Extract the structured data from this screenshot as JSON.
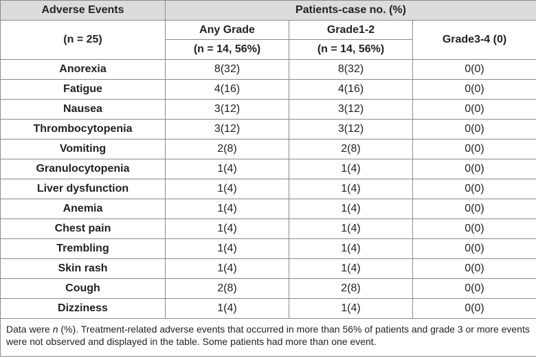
{
  "header": {
    "events": "Adverse Events",
    "group": "Patients-case no. (%)",
    "n": "(n = 25)",
    "any": "Any Grade",
    "any_n": "(n = 14, 56%)",
    "g12": "Grade1-2",
    "g12_n": "(n = 14, 56%)",
    "g34": "Grade3-4 (0)"
  },
  "table": {
    "rows": [
      [
        "Anorexia",
        "8(32)",
        "8(32)",
        "0(0)"
      ],
      [
        "Fatigue",
        "4(16)",
        "4(16)",
        "0(0)"
      ],
      [
        "Nausea",
        "3(12)",
        "3(12)",
        "0(0)"
      ],
      [
        "Thrombocytopenia",
        "3(12)",
        "3(12)",
        "0(0)"
      ],
      [
        "Vomiting",
        "2(8)",
        "2(8)",
        "0(0)"
      ],
      [
        "Granulocytopenia",
        "1(4)",
        "1(4)",
        "0(0)"
      ],
      [
        "Liver dysfunction",
        "1(4)",
        "1(4)",
        "0(0)"
      ],
      [
        "Anemia",
        "1(4)",
        "1(4)",
        "0(0)"
      ],
      [
        "Chest pain",
        "1(4)",
        "1(4)",
        "0(0)"
      ],
      [
        "Trembling",
        "1(4)",
        "1(4)",
        "0(0)"
      ],
      [
        "Skin rash",
        "1(4)",
        "1(4)",
        "0(0)"
      ],
      [
        "Cough",
        "2(8)",
        "2(8)",
        "0(0)"
      ],
      [
        "Dizziness",
        "1(4)",
        "1(4)",
        "0(0)"
      ]
    ]
  },
  "footnote": {
    "prefix": "Data were ",
    "italic": "n",
    "suffix": " (%). Treatment-related adverse events that occurred in more than 56% of patients and grade 3 or more events were not observed and displayed in the table. Some patients had more than one event."
  }
}
